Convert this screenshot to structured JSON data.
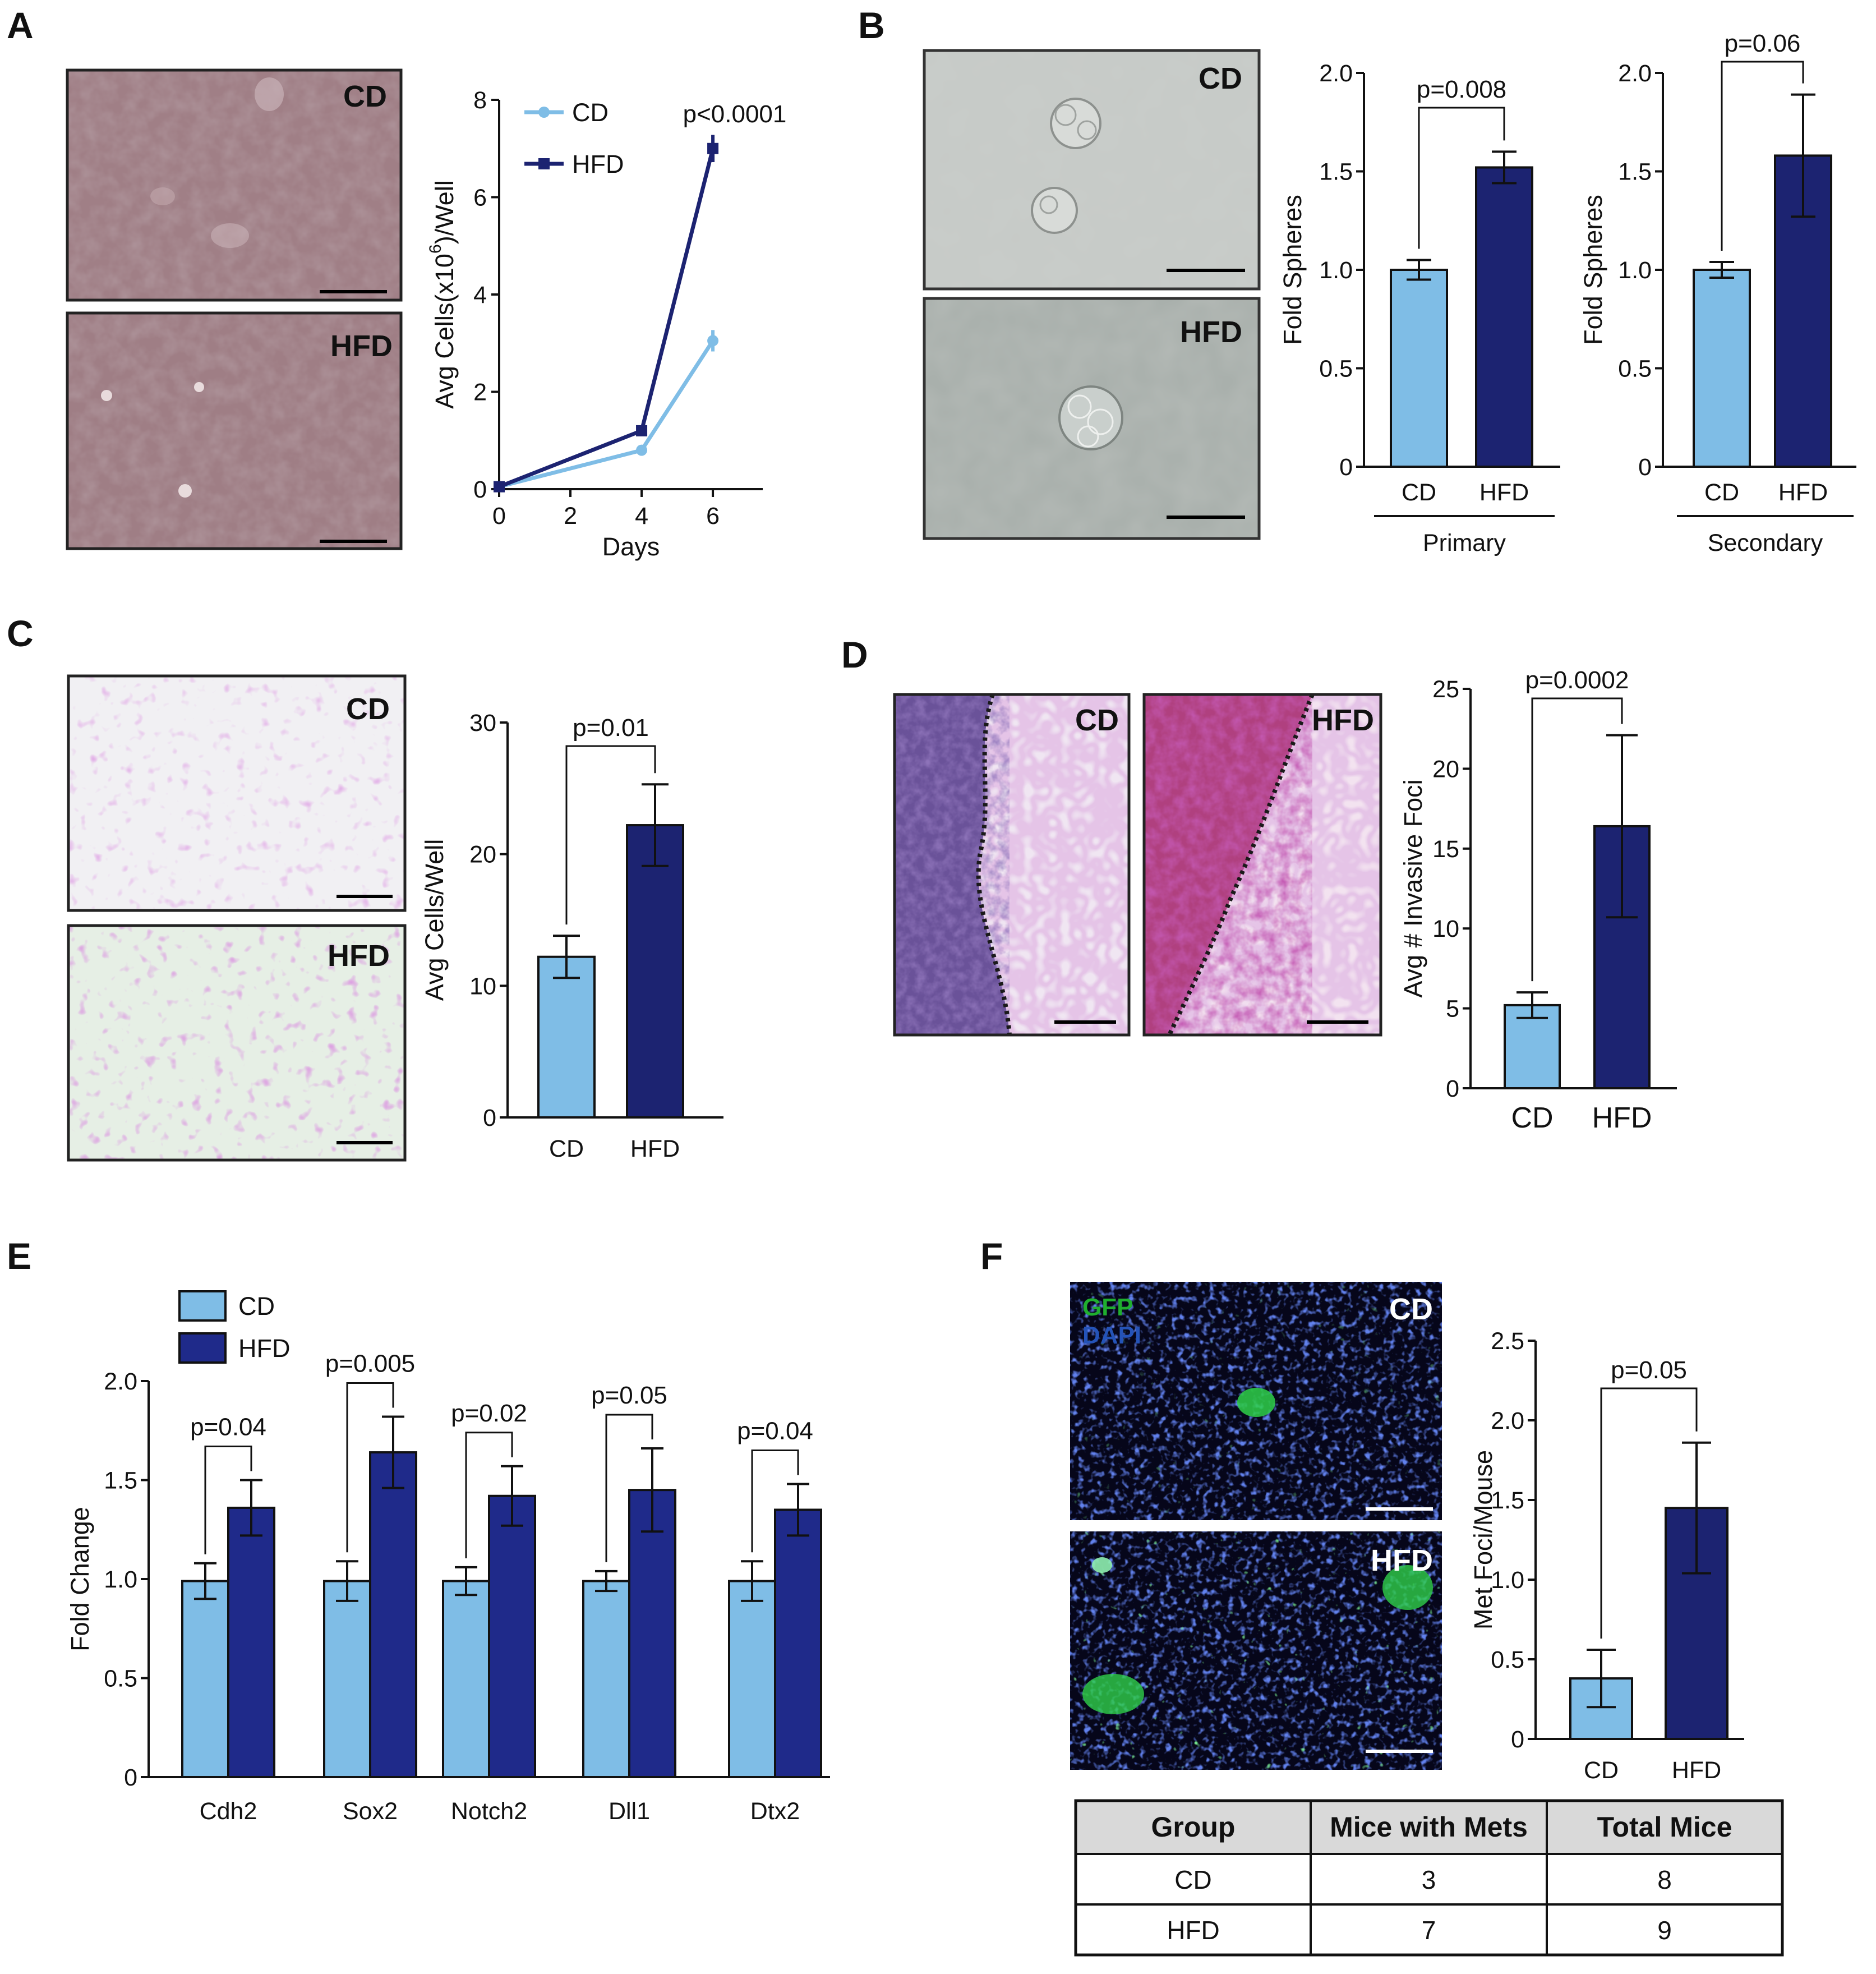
{
  "colors": {
    "cd": "#7fbde6",
    "hfd": "#1c2371",
    "hfd_e": "#1f2a8a"
  },
  "panels": {
    "A": "A",
    "B": "B",
    "C": "C",
    "D": "D",
    "E": "E",
    "F": "F"
  },
  "micrographs": {
    "A_cd": "CD",
    "A_hfd": "HFD",
    "B_cd": "CD",
    "B_hfd": "HFD",
    "C_cd": "CD",
    "C_hfd": "HFD",
    "D_cd": "CD",
    "D_hfd": "HFD",
    "F_cd": "CD",
    "F_hfd": "HFD",
    "F_gfp": "GFP",
    "F_dapi": "DAPI"
  },
  "chart_data": [
    {
      "id": "A",
      "type": "line",
      "xlabel": "Days",
      "ylabel_pre": "Avg Cells(x10",
      "ylabel_sup": "6",
      "ylabel_post": ")/Well",
      "x": [
        0,
        4,
        6
      ],
      "xticks": [
        "0",
        "2",
        "4",
        "6"
      ],
      "yticks": [
        "0",
        "2",
        "4",
        "6",
        "8"
      ],
      "xlim": [
        0,
        7.4
      ],
      "ylim": [
        0,
        8
      ],
      "series": [
        {
          "name": "CD",
          "values": [
            0.05,
            0.8,
            3.05
          ],
          "errors": [
            0.05,
            0.08,
            0.22
          ]
        },
        {
          "name": "HFD",
          "values": [
            0.05,
            1.2,
            7.0
          ],
          "errors": [
            0.05,
            0.08,
            0.28
          ]
        }
      ],
      "annotation": "p<0.0001",
      "legend": "top-left"
    },
    {
      "id": "B1",
      "type": "bar",
      "categories": [
        "CD",
        "HFD"
      ],
      "values": [
        1.0,
        1.52
      ],
      "errors": [
        0.05,
        0.08
      ],
      "ylabel": "Fold Spheres",
      "group_label": "Primary",
      "yticks": [
        "0",
        "0.5",
        "1.0",
        "1.5",
        "2.0"
      ],
      "ylim": [
        0,
        2.0
      ],
      "annotation": "p=0.008"
    },
    {
      "id": "B2",
      "type": "bar",
      "categories": [
        "CD",
        "HFD"
      ],
      "values": [
        1.0,
        1.58
      ],
      "errors": [
        0.04,
        0.31
      ],
      "ylabel": "Fold Spheres",
      "group_label": "Secondary",
      "yticks": [
        "0",
        "0.5",
        "1.0",
        "1.5",
        "2.0"
      ],
      "ylim": [
        0,
        2.0
      ],
      "annotation": "p=0.06"
    },
    {
      "id": "C",
      "type": "bar",
      "categories": [
        "CD",
        "HFD"
      ],
      "values": [
        12.2,
        22.2
      ],
      "errors": [
        1.6,
        3.1
      ],
      "ylabel": "Avg Cells/Well",
      "yticks": [
        "0",
        "10",
        "20",
        "30"
      ],
      "ylim": [
        0,
        30
      ],
      "annotation": "p=0.01"
    },
    {
      "id": "D",
      "type": "bar",
      "categories": [
        "CD",
        "HFD"
      ],
      "values": [
        5.2,
        16.4
      ],
      "errors": [
        0.8,
        5.7
      ],
      "ylabel": "Avg # Invasive Foci",
      "yticks": [
        "0",
        "5",
        "10",
        "15",
        "20",
        "25"
      ],
      "ylim": [
        0,
        25
      ],
      "annotation": "p=0.0002"
    },
    {
      "id": "E",
      "type": "bar",
      "categories": [
        "Cdh2",
        "Sox2",
        "Notch2",
        "Dll1",
        "Dtx2"
      ],
      "series": [
        {
          "name": "CD",
          "values": [
            0.99,
            0.99,
            0.99,
            0.99,
            0.99
          ],
          "errors": [
            0.09,
            0.1,
            0.07,
            0.05,
            0.1
          ]
        },
        {
          "name": "HFD",
          "values": [
            1.36,
            1.64,
            1.42,
            1.45,
            1.35
          ],
          "errors": [
            0.14,
            0.18,
            0.15,
            0.21,
            0.13
          ]
        }
      ],
      "ylabel": "Fold Change",
      "yticks": [
        "0",
        "0.5",
        "1.0",
        "1.5",
        "2.0"
      ],
      "ylim": [
        0,
        2.0
      ],
      "annotations": [
        "p=0.04",
        "p=0.005",
        "p=0.02",
        "p=0.05",
        "p=0.04"
      ],
      "legend": "top-left"
    },
    {
      "id": "F",
      "type": "bar",
      "categories": [
        "CD",
        "HFD"
      ],
      "values": [
        0.38,
        1.45
      ],
      "errors": [
        0.18,
        0.41
      ],
      "ylabel": "Met Foci/Mouse",
      "yticks": [
        "0",
        "0.5",
        "1.0",
        "1.5",
        "2.0",
        "2.5"
      ],
      "ylim": [
        0,
        2.5
      ],
      "annotation": "p=0.05"
    },
    {
      "id": "F_table",
      "type": "table",
      "columns": [
        "Group",
        "Mice with Mets",
        "Total Mice"
      ],
      "rows": [
        [
          "CD",
          "3",
          "8"
        ],
        [
          "HFD",
          "7",
          "9"
        ]
      ]
    }
  ]
}
